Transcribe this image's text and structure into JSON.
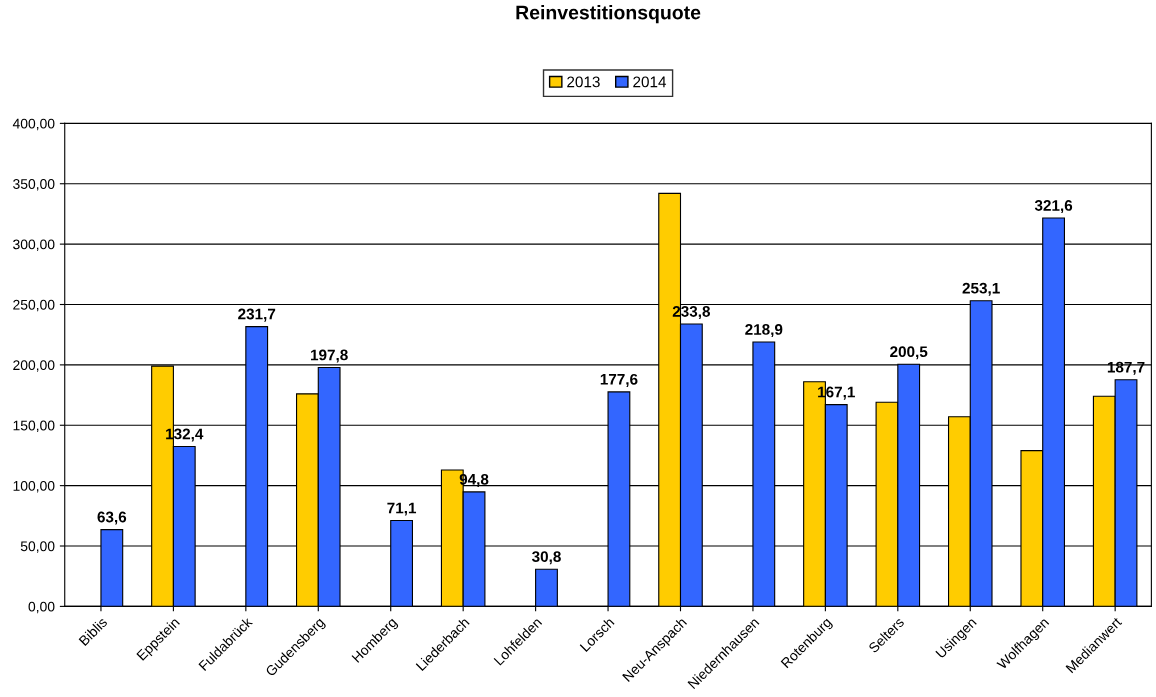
{
  "chart_data": {
    "type": "bar",
    "title": "Reinvestitionsquote",
    "categories": [
      "Biblis",
      "Eppstein",
      "Fuldabrück",
      "Gudensberg",
      "Homberg",
      "Liederbach",
      "Lohfelden",
      "Lorsch",
      "Neu-Anspach",
      "Niedernhausen",
      "Rotenburg",
      "Selters",
      "Usingen",
      "Wolfhagen",
      "Medianwert"
    ],
    "series": [
      {
        "name": "2013",
        "color": "#ffcc00",
        "values": [
          null,
          199,
          null,
          176,
          null,
          113,
          null,
          null,
          342,
          null,
          186,
          169,
          157,
          129,
          174
        ]
      },
      {
        "name": "2014",
        "color": "#3366ff",
        "values": [
          63.6,
          132.4,
          231.7,
          197.8,
          71.1,
          94.8,
          30.8,
          177.6,
          233.8,
          218.9,
          167.1,
          200.5,
          253.1,
          321.6,
          187.7
        ],
        "value_labels": [
          "63,6",
          "132,4",
          "231,7",
          "197,8",
          "71,1",
          "94,8",
          "30,8",
          "177,6",
          "233,8",
          "218,9",
          "167,1",
          "200,5",
          "253,1",
          "321,6",
          "187,7"
        ]
      }
    ],
    "ylim": [
      0,
      400
    ],
    "yticks": [
      {
        "value": 0,
        "label": "0,00"
      },
      {
        "value": 50,
        "label": "50,00"
      },
      {
        "value": 100,
        "label": "100,00"
      },
      {
        "value": 150,
        "label": "150,00"
      },
      {
        "value": 200,
        "label": "200,00"
      },
      {
        "value": 250,
        "label": "250,00"
      },
      {
        "value": 300,
        "label": "300,00"
      },
      {
        "value": 350,
        "label": "350,00"
      },
      {
        "value": 400,
        "label": "400,00"
      }
    ],
    "grid": "y",
    "legend": "top"
  }
}
